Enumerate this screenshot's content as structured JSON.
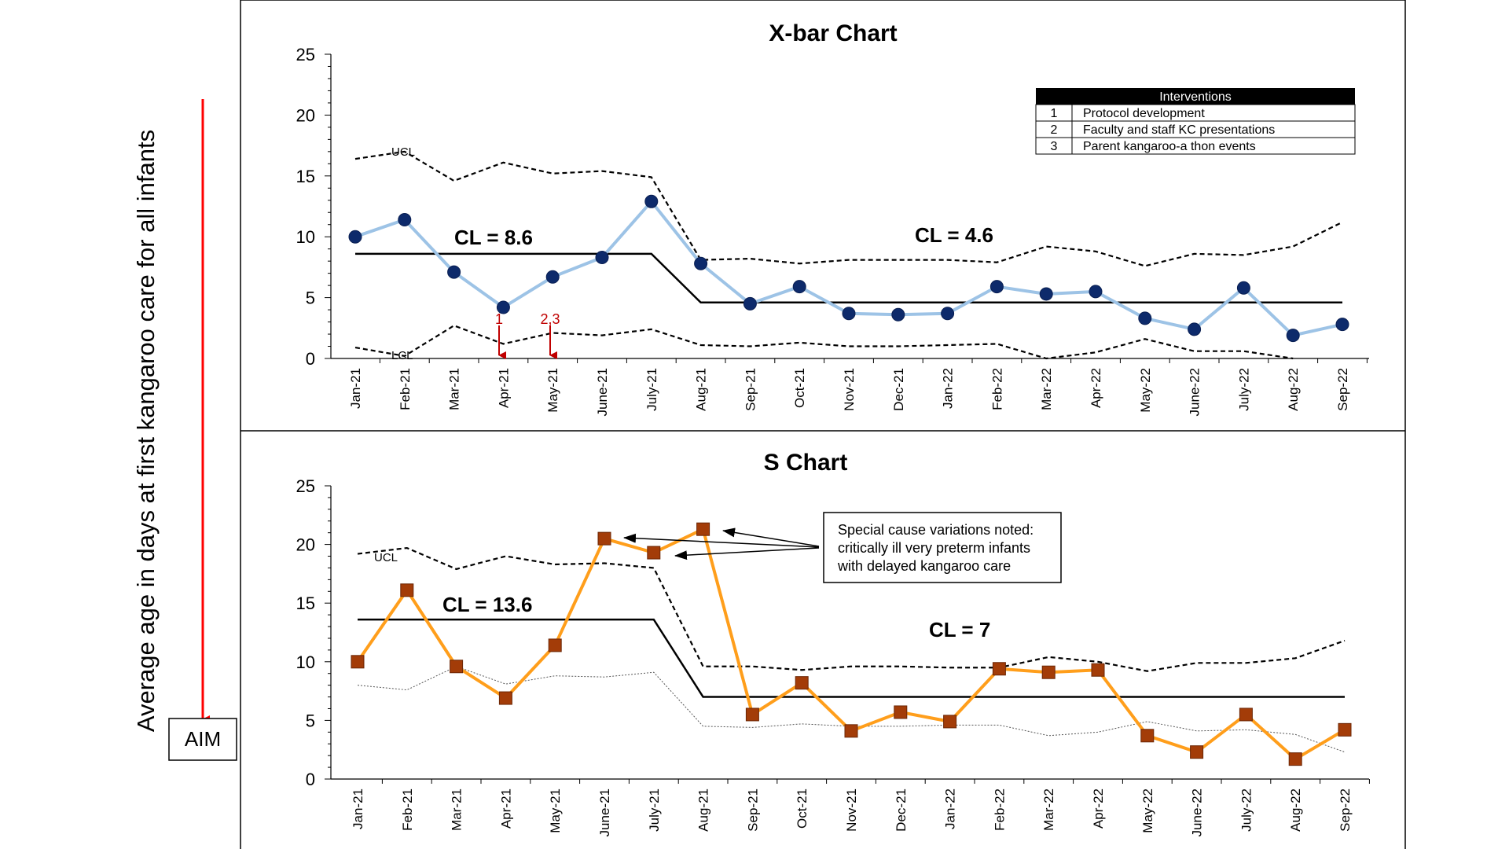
{
  "y_axis_label": "Average age in days at first kangaroo care for all infants",
  "aim_label": "AIM",
  "colors": {
    "aim_arrow": "#ff0000",
    "xbar_line": "#9dc3e6",
    "xbar_marker": "#0d2a6b",
    "s_line": "#ff9e1b",
    "s_marker": "#a33c08",
    "intervention_arrow": "#c00000"
  },
  "chart_data": [
    {
      "type": "line",
      "title": "X-bar Chart",
      "categories": [
        "Jan-21",
        "Feb-21",
        "Mar-21",
        "Apr-21",
        "May-21",
        "June-21",
        "July-21",
        "Aug-21",
        "Sep-21",
        "Oct-21",
        "Nov-21",
        "Dec-21",
        "Jan-22",
        "Feb-22",
        "Mar-22",
        "Apr-22",
        "May-22",
        "June-22",
        "July-22",
        "Aug-22",
        "Sep-22"
      ],
      "ylim": [
        0,
        25
      ],
      "yticks": [
        0,
        5,
        10,
        15,
        20,
        25
      ],
      "series": [
        {
          "name": "",
          "values": [
            10,
            11.4,
            7.1,
            4.2,
            6.7,
            8.3,
            12.9,
            7.8,
            4.5,
            5.9,
            3.7,
            3.6,
            3.7,
            5.9,
            5.3,
            5.5,
            3.3,
            2.4,
            5.8,
            1.9,
            2.8
          ]
        }
      ],
      "ucl": [
        16.4,
        17.0,
        14.6,
        16.1,
        15.2,
        15.4,
        14.9,
        8.1,
        8.2,
        7.8,
        8.1,
        8.1,
        8.1,
        7.9,
        9.2,
        8.8,
        7.6,
        8.6,
        8.5,
        9.2,
        11.2
      ],
      "lcl": [
        0.9,
        0.2,
        2.7,
        1.2,
        2.1,
        1.9,
        2.4,
        1.1,
        1.0,
        1.3,
        1.0,
        1.0,
        1.1,
        1.2,
        -0.1,
        0.5,
        1.6,
        0.6,
        0.6,
        0.0,
        null
      ],
      "ucl_label": "UCL",
      "lcl_label": "LCL",
      "center_lines": [
        {
          "label": "CL = 8.6",
          "value": 8.6
        },
        {
          "label": "CL = 4.6",
          "value": 4.6
        }
      ],
      "intervention_markers": [
        {
          "label": "1",
          "category": "Apr-21"
        },
        {
          "label": "2,3",
          "category": "May-21"
        }
      ],
      "legend": {
        "header": "Interventions",
        "rows": [
          {
            "num": "1",
            "text": "Protocol development"
          },
          {
            "num": "2",
            "text": "Faculty and staff KC presentations"
          },
          {
            "num": "3",
            "text": "Parent kangaroo-a thon events"
          }
        ]
      }
    },
    {
      "type": "line",
      "title": "S Chart",
      "categories": [
        "Jan-21",
        "Feb-21",
        "Mar-21",
        "Apr-21",
        "May-21",
        "June-21",
        "July-21",
        "Aug-21",
        "Sep-21",
        "Oct-21",
        "Nov-21",
        "Dec-21",
        "Jan-22",
        "Feb-22",
        "Mar-22",
        "Apr-22",
        "May-22",
        "June-22",
        "July-22",
        "Aug-22",
        "Sep-22"
      ],
      "ylim": [
        0,
        25
      ],
      "yticks": [
        0,
        5,
        10,
        15,
        20,
        25
      ],
      "series": [
        {
          "name": "",
          "values": [
            10,
            16.1,
            9.6,
            6.9,
            11.4,
            20.5,
            19.3,
            21.3,
            5.5,
            8.2,
            4.1,
            5.7,
            4.9,
            9.4,
            9.1,
            9.3,
            3.7,
            2.3,
            5.5,
            1.7,
            4.2
          ]
        }
      ],
      "ucl": [
        19.2,
        19.7,
        17.9,
        19.0,
        18.3,
        18.4,
        18.0,
        9.6,
        9.6,
        9.3,
        9.6,
        9.6,
        9.5,
        9.5,
        10.4,
        10.0,
        9.2,
        9.9,
        9.9,
        10.3,
        11.8
      ],
      "lcl": [
        8.0,
        7.6,
        9.6,
        8.1,
        8.8,
        8.7,
        9.1,
        4.5,
        4.4,
        4.7,
        4.5,
        4.5,
        4.6,
        4.6,
        3.7,
        4.0,
        4.9,
        4.1,
        4.2,
        3.8,
        2.3
      ],
      "ucl_label": "UCL",
      "center_lines": [
        {
          "label": "CL = 13.6",
          "value": 13.6
        },
        {
          "label": "CL = 7",
          "value": 7
        }
      ],
      "annotation": [
        "Special cause variations noted:",
        "critically ill very preterm infants",
        "with delayed kangaroo care"
      ]
    }
  ]
}
